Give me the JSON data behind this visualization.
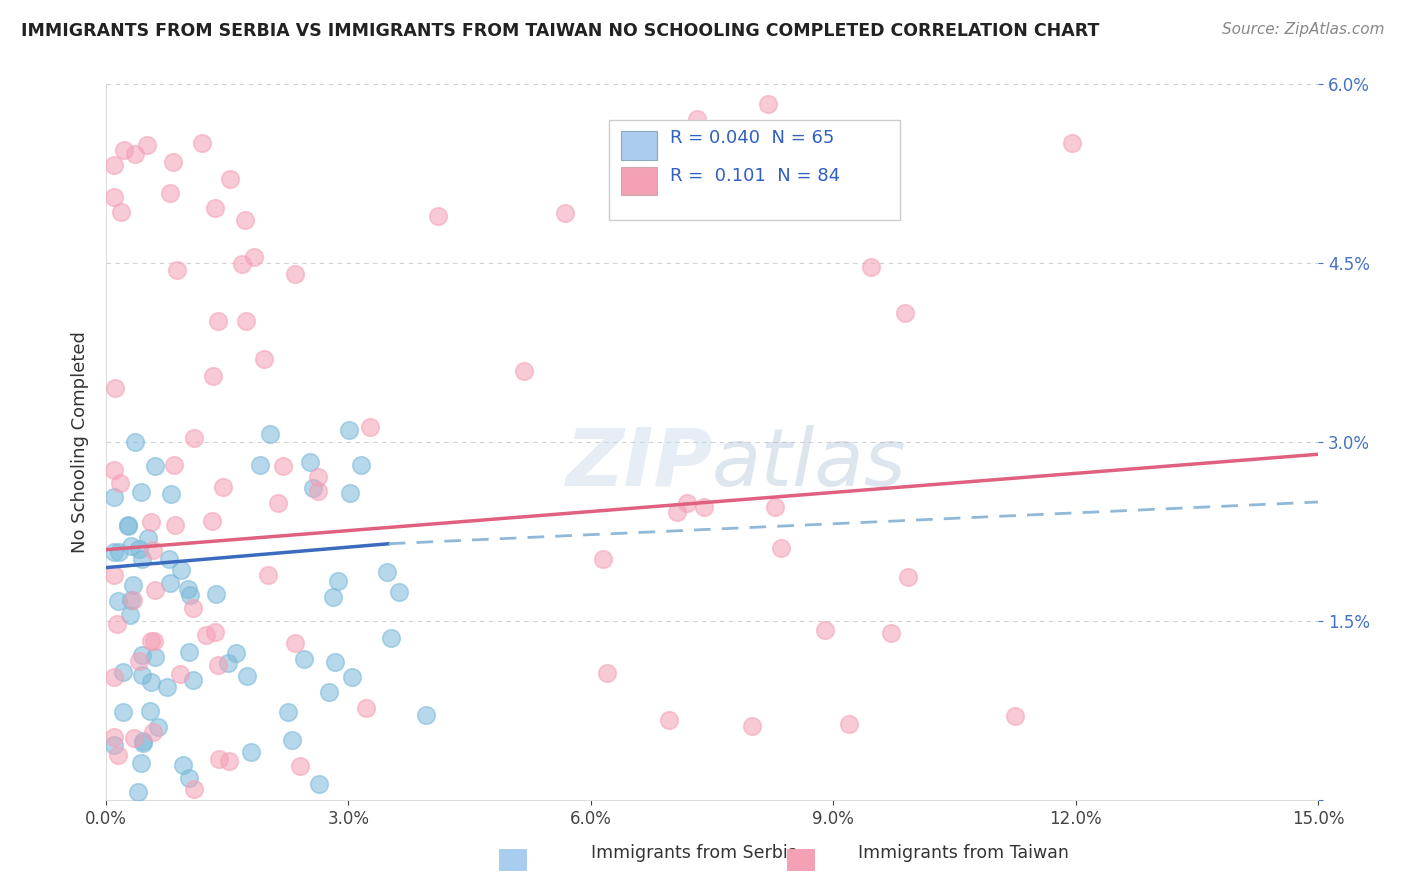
{
  "title": "IMMIGRANTS FROM SERBIA VS IMMIGRANTS FROM TAIWAN NO SCHOOLING COMPLETED CORRELATION CHART",
  "source": "Source: ZipAtlas.com",
  "xlabel_serbia": "Immigrants from Serbia",
  "xlabel_taiwan": "Immigrants from Taiwan",
  "ylabel": "No Schooling Completed",
  "legend_r_serbia": "R = 0.040",
  "legend_n_serbia": "N = 65",
  "legend_r_taiwan": "R = 0.101",
  "legend_n_taiwan": "N = 84",
  "xlim": [
    0.0,
    0.15
  ],
  "ylim": [
    0.0,
    0.06
  ],
  "xtick_vals": [
    0.0,
    0.03,
    0.06,
    0.09,
    0.12,
    0.15
  ],
  "xtick_labels": [
    "0.0%",
    "3.0%",
    "6.0%",
    "9.0%",
    "12.0%",
    "15.0%"
  ],
  "ytick_vals": [
    0.0,
    0.015,
    0.03,
    0.045,
    0.06
  ],
  "ytick_labels": [
    "",
    "1.5%",
    "3.0%",
    "4.5%",
    "6.0%"
  ],
  "color_serbia": "#7ab8d9",
  "color_taiwan": "#f4a0b5",
  "color_serbia_line": "#3a6bbf",
  "color_taiwan_line": "#e06080",
  "color_dashed": "#90b8d8",
  "background_color": "#ffffff",
  "serbia_line_x0": 0.0,
  "serbia_line_y0": 0.0195,
  "serbia_line_x1": 0.035,
  "serbia_line_y1": 0.0215,
  "dashed_line_x0": 0.035,
  "dashed_line_y0": 0.0215,
  "dashed_line_x1": 0.15,
  "dashed_line_y1": 0.025,
  "taiwan_line_x0": 0.0,
  "taiwan_line_y0": 0.021,
  "taiwan_line_x1": 0.15,
  "taiwan_line_y1": 0.029
}
